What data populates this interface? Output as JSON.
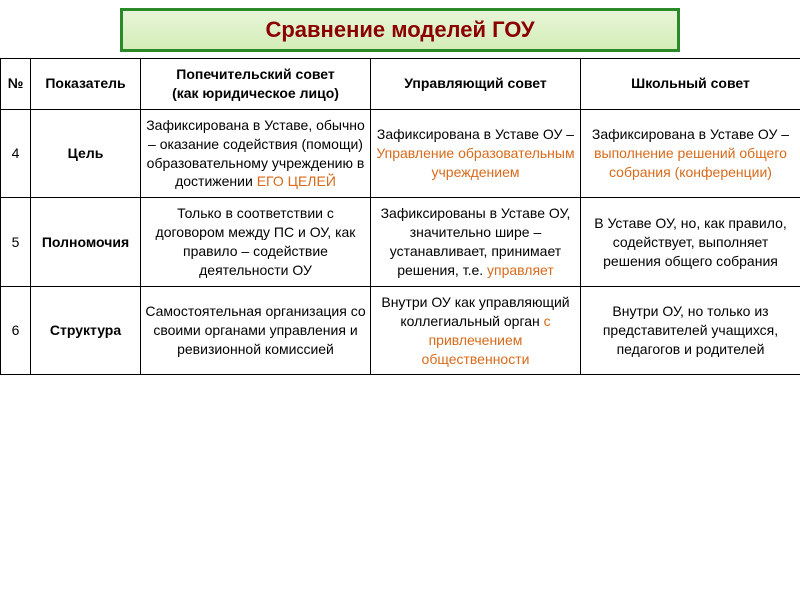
{
  "title": "Сравнение моделей ГОУ",
  "header": {
    "num": "№",
    "indicator": "Показатель",
    "col_a_line1": "Попечительский совет",
    "col_a_line2": "(как юридическое лицо)",
    "col_b": "Управляющий совет",
    "col_c": "Школьный совет"
  },
  "rows": [
    {
      "num": "4",
      "indicator": "Цель",
      "a": {
        "pre": "Зафиксирована в Уставе, обычно – оказание содействия (помощи) образовательному учреждению в достижении ",
        "hl": "ЕГО ЦЕЛЕЙ"
      },
      "b": {
        "pre": "Зафиксирована в Уставе ОУ – ",
        "hl": "Управление образовательным учреждением"
      },
      "c": {
        "pre": "Зафиксирована в Уставе ОУ – ",
        "hl": "выполнение решений общего собрания (конференции)"
      }
    },
    {
      "num": "5",
      "indicator": "Полномочия",
      "a": {
        "pre": "Только в соответствии с договором между ПС и ОУ, как правило – содействие деятельности ОУ",
        "hl": ""
      },
      "b": {
        "pre": "Зафиксированы в Уставе ОУ, значительно шире – устанавливает, принимает решения, т.е. ",
        "hl": "управляет"
      },
      "c": {
        "pre": "В Уставе ОУ, но, как правило, содействует, выполняет решения общего собрания",
        "hl": ""
      }
    },
    {
      "num": "6",
      "indicator": "Структура",
      "a": {
        "pre": "Самостоятельная организация со своими органами управления и ревизионной комиссией",
        "hl": ""
      },
      "b": {
        "pre": "Внутри ОУ как управляющий коллегиальный орган ",
        "hl": "с привлечением общественности"
      },
      "c": {
        "pre": "Внутри ОУ, но только из представителей учащихся, педагогов и родителей",
        "hl": ""
      }
    }
  ]
}
